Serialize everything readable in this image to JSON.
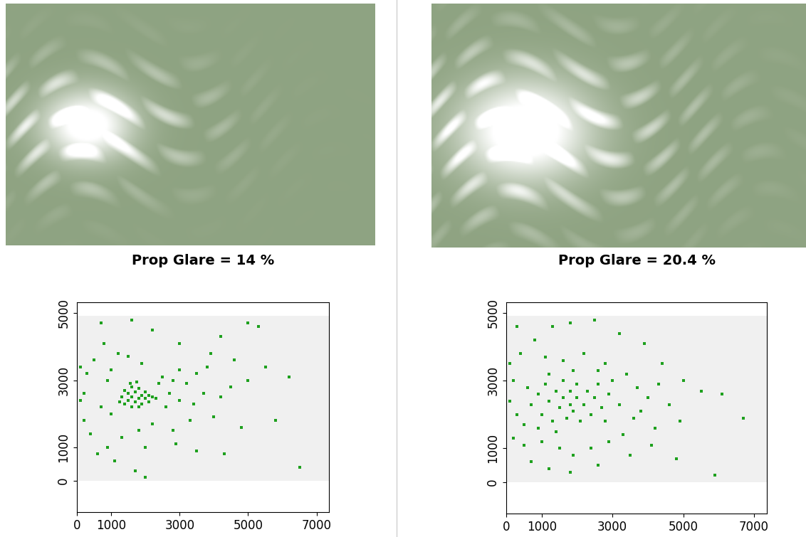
{
  "chart_data": [
    {
      "type": "scatter",
      "title": "Prop Glare = 14 %",
      "color": "#1ea01e",
      "xlim": [
        0,
        7360
      ],
      "ylim": [
        -930,
        5320
      ],
      "xticks": [
        0,
        1000,
        3000,
        5000,
        7000
      ],
      "yticks": [
        0,
        1000,
        3000,
        5000
      ],
      "image_extent": {
        "x": [
          0,
          7360
        ],
        "y": [
          0,
          4912
        ]
      },
      "x": [
        1300,
        1400,
        1400,
        1500,
        1500,
        1600,
        1600,
        1600,
        1700,
        1700,
        1800,
        1800,
        1800,
        1900,
        1900,
        2000,
        2000,
        2100,
        2100,
        2200,
        1550,
        1750,
        1250,
        2300,
        100,
        200,
        100,
        300,
        500,
        200,
        800,
        900,
        1000,
        1200,
        1500,
        2500,
        2800,
        3000,
        3200,
        3500,
        3800,
        2600,
        3000,
        3400,
        3700,
        4200,
        4500,
        5000,
        5500,
        6200,
        6500,
        5800,
        4800,
        4000,
        3300,
        2800,
        2200,
        1800,
        1300,
        900,
        600,
        400,
        1100,
        2000,
        2900,
        3500,
        4300,
        5000,
        5300,
        3000,
        2200,
        1600,
        700,
        4200,
        1900,
        2400,
        2700,
        1000,
        700,
        3900,
        4600,
        2000,
        1700
      ],
      "y": [
        2500,
        2300,
        2700,
        2400,
        2600,
        2200,
        2500,
        2800,
        2350,
        2650,
        2450,
        2200,
        2750,
        2550,
        2300,
        2450,
        2650,
        2350,
        2550,
        2500,
        2900,
        2950,
        2350,
        2450,
        2400,
        2600,
        3400,
        3200,
        3600,
        1800,
        4100,
        3000,
        3300,
        3800,
        3700,
        3100,
        3000,
        3300,
        2900,
        3200,
        3400,
        2200,
        2400,
        2300,
        2600,
        2500,
        2800,
        3000,
        3400,
        3100,
        400,
        1800,
        1600,
        1900,
        1800,
        1500,
        1700,
        1500,
        1300,
        1000,
        800,
        1400,
        600,
        1000,
        1100,
        900,
        800,
        4700,
        4600,
        4100,
        4500,
        4800,
        4700,
        4300,
        3500,
        2900,
        2600,
        2000,
        2200,
        3800,
        3600,
        100,
        300
      ]
    },
    {
      "type": "scatter",
      "title": "Prop Glare = 20.4 %",
      "color": "#1ea01e",
      "xlim": [
        0,
        7360
      ],
      "ylim": [
        -930,
        5320
      ],
      "xticks": [
        0,
        1000,
        3000,
        5000,
        7000
      ],
      "yticks": [
        0,
        1000,
        3000,
        5000
      ],
      "image_extent": {
        "x": [
          0,
          7360
        ],
        "y": [
          0,
          4912
        ]
      },
      "x": [
        700,
        900,
        1000,
        1100,
        1200,
        1300,
        1400,
        1500,
        1600,
        1600,
        1700,
        1800,
        1800,
        1900,
        2000,
        2000,
        2100,
        2200,
        2300,
        2400,
        2500,
        2600,
        2700,
        2800,
        1200,
        900,
        600,
        300,
        100,
        200,
        500,
        2900,
        3000,
        1400,
        1900,
        100,
        400,
        800,
        1300,
        1800,
        2500,
        3200,
        2200,
        2800,
        3400,
        3700,
        4000,
        4300,
        4600,
        5000,
        5500,
        6100,
        6700,
        4900,
        4200,
        3600,
        3300,
        2900,
        2400,
        1900,
        1500,
        1000,
        500,
        200,
        700,
        1200,
        1800,
        2600,
        3500,
        4100,
        4800,
        3200,
        3800,
        1100,
        1600,
        2600,
        4400,
        3900,
        5900,
        300
      ],
      "y": [
        2300,
        2600,
        2000,
        2900,
        2400,
        1800,
        2700,
        2200,
        3000,
        2500,
        1900,
        2700,
        2300,
        2100,
        2900,
        2500,
        1800,
        2300,
        2700,
        2000,
        2500,
        2900,
        2200,
        1800,
        3200,
        1600,
        2800,
        2000,
        2400,
        3000,
        1700,
        2600,
        3000,
        1500,
        3300,
        3500,
        3800,
        4200,
        4600,
        4700,
        4800,
        4400,
        3800,
        3500,
        3200,
        2800,
        2500,
        2900,
        2300,
        3000,
        2700,
        2600,
        1900,
        1800,
        1600,
        1900,
        1400,
        1200,
        1000,
        800,
        1000,
        1200,
        1100,
        1300,
        600,
        400,
        300,
        500,
        800,
        1100,
        700,
        2300,
        2100,
        3700,
        3600,
        3300,
        3500,
        4100,
        200,
        4600
      ]
    }
  ]
}
